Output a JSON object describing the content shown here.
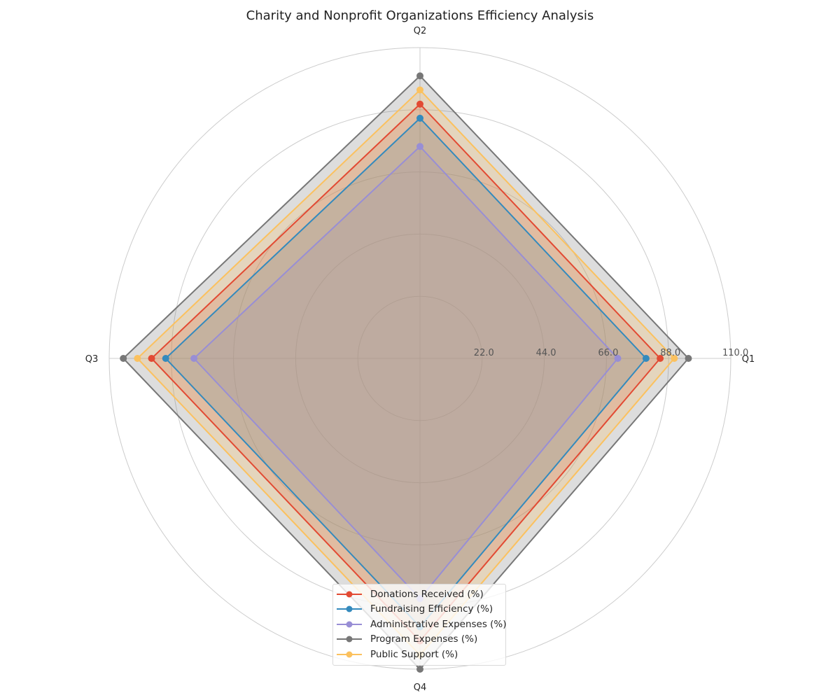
{
  "chart_data": {
    "type": "radar",
    "title": "Charity and Nonprofit Organizations Efficiency Analysis",
    "categories": [
      "Q1",
      "Q2",
      "Q3",
      "Q4"
    ],
    "rlim": [
      0,
      110
    ],
    "radial_ticks": [
      22,
      44,
      66,
      88,
      110
    ],
    "radial_tick_labels": [
      "22.0",
      "44.0",
      "66.0",
      "88.0",
      "110.0"
    ],
    "grid": true,
    "legend_position": "lower center",
    "series": [
      {
        "name": "Donations Received (%)",
        "values": [
          85,
          90,
          95,
          100
        ],
        "color": "#E24A33"
      },
      {
        "name": "Fundraising Efficiency (%)",
        "values": [
          80,
          85,
          90,
          95
        ],
        "color": "#348ABD"
      },
      {
        "name": "Administrative Expenses (%)",
        "values": [
          70,
          75,
          80,
          85
        ],
        "color": "#988ED5"
      },
      {
        "name": "Program Expenses (%)",
        "values": [
          95,
          100,
          105,
          110
        ],
        "color": "#777777"
      },
      {
        "name": "Public Support (%)",
        "values": [
          90,
          95,
          100,
          105
        ],
        "color": "#FBC15E"
      }
    ]
  }
}
